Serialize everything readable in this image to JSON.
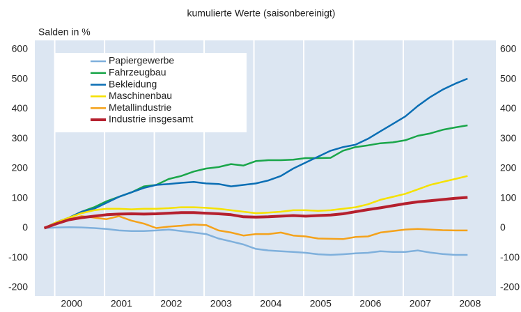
{
  "chart_data": {
    "type": "line",
    "title": "kumulierte Werte (saisonbereinigt)",
    "y_label": "Salden in %",
    "x": [
      1999.45,
      1999.7,
      1999.95,
      2000.2,
      2000.45,
      2000.7,
      2000.95,
      2001.2,
      2001.45,
      2001.7,
      2001.95,
      2002.2,
      2002.45,
      2002.7,
      2002.95,
      2003.2,
      2003.45,
      2003.7,
      2003.95,
      2004.2,
      2004.45,
      2004.7,
      2004.95,
      2005.2,
      2005.45,
      2005.7,
      2005.95,
      2006.2,
      2006.45,
      2006.7,
      2006.95,
      2007.2,
      2007.45,
      2007.7,
      2007.95
    ],
    "series": [
      {
        "name": "Papiergewerbe",
        "color": "#7fb0dc",
        "values": [
          0,
          2,
          3,
          2,
          0,
          -3,
          -8,
          -10,
          -10,
          -8,
          -5,
          -10,
          -15,
          -20,
          -35,
          -45,
          -55,
          -70,
          -75,
          -78,
          -80,
          -83,
          -88,
          -90,
          -88,
          -85,
          -83,
          -78,
          -80,
          -80,
          -75,
          -82,
          -87,
          -90,
          -90
        ]
      },
      {
        "name": "Fahrzeugbau",
        "color": "#1aa64a",
        "values": [
          0,
          20,
          35,
          55,
          70,
          90,
          105,
          120,
          140,
          145,
          165,
          175,
          190,
          200,
          205,
          215,
          210,
          225,
          228,
          228,
          230,
          235,
          235,
          236,
          260,
          272,
          278,
          285,
          288,
          295,
          310,
          318,
          330,
          338,
          345
        ]
      },
      {
        "name": "Bekleidung",
        "color": "#0a6eb4",
        "values": [
          0,
          20,
          35,
          55,
          65,
          85,
          105,
          120,
          135,
          145,
          148,
          152,
          155,
          150,
          148,
          140,
          145,
          150,
          160,
          175,
          200,
          220,
          240,
          260,
          272,
          280,
          300,
          325,
          350,
          375,
          410,
          440,
          465,
          485,
          502
        ]
      },
      {
        "name": "Maschinenbau",
        "color": "#f5e100",
        "values": [
          0,
          20,
          35,
          50,
          60,
          65,
          65,
          63,
          65,
          65,
          67,
          70,
          70,
          68,
          65,
          60,
          55,
          50,
          52,
          55,
          60,
          60,
          58,
          60,
          65,
          70,
          80,
          95,
          105,
          115,
          130,
          145,
          155,
          165,
          175
        ]
      },
      {
        "name": "Metallindustrie",
        "color": "#f4a21b",
        "values": [
          0,
          15,
          30,
          40,
          35,
          30,
          40,
          25,
          15,
          0,
          5,
          8,
          12,
          10,
          -8,
          -15,
          -25,
          -20,
          -20,
          -15,
          -25,
          -28,
          -35,
          -36,
          -37,
          -30,
          -28,
          -15,
          -10,
          -5,
          -3,
          -5,
          -7,
          -8,
          -8
        ]
      },
      {
        "name": "Industrie insgesamt",
        "color": "#b5202e",
        "values": [
          0,
          15,
          28,
          35,
          40,
          45,
          47,
          48,
          47,
          48,
          50,
          52,
          52,
          50,
          48,
          45,
          38,
          37,
          38,
          40,
          42,
          40,
          42,
          44,
          48,
          55,
          62,
          68,
          75,
          82,
          88,
          92,
          96,
          100,
          103
        ]
      }
    ],
    "xlim": [
      1999.26,
      2008.52
    ],
    "xticks": [
      2000,
      2001,
      2002,
      2003,
      2004,
      2005,
      2006,
      2007,
      2008
    ],
    "ylim": [
      -200,
      600
    ],
    "yticks": [
      -200,
      -100,
      0,
      100,
      200,
      300,
      400,
      500,
      600
    ],
    "background": "#dce6f2"
  }
}
